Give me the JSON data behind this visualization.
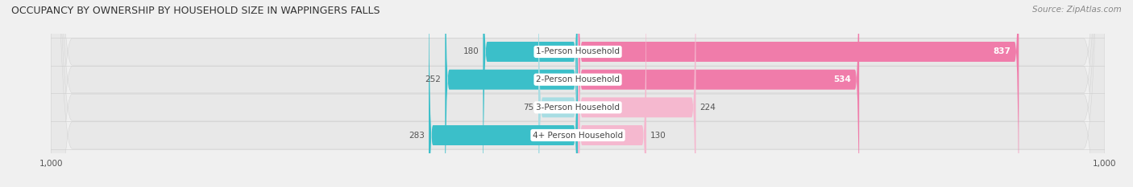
{
  "title": "OCCUPANCY BY OWNERSHIP BY HOUSEHOLD SIZE IN WAPPINGERS FALLS",
  "source": "Source: ZipAtlas.com",
  "categories": [
    "1-Person Household",
    "2-Person Household",
    "3-Person Household",
    "4+ Person Household"
  ],
  "owner_values": [
    180,
    252,
    75,
    283
  ],
  "renter_values": [
    837,
    534,
    224,
    130
  ],
  "owner_color": "#3bbfc9",
  "renter_color": "#f07caa",
  "owner_color_light": "#a8dde3",
  "renter_color_light": "#f5b8cf",
  "axis_max": 1000,
  "background_color": "#f0f0f0",
  "row_bg_color": "#e4e4e4",
  "title_fontsize": 9,
  "label_fontsize": 7.5,
  "value_fontsize": 7.5,
  "tick_fontsize": 7.5,
  "legend_fontsize": 8,
  "source_fontsize": 7.5
}
